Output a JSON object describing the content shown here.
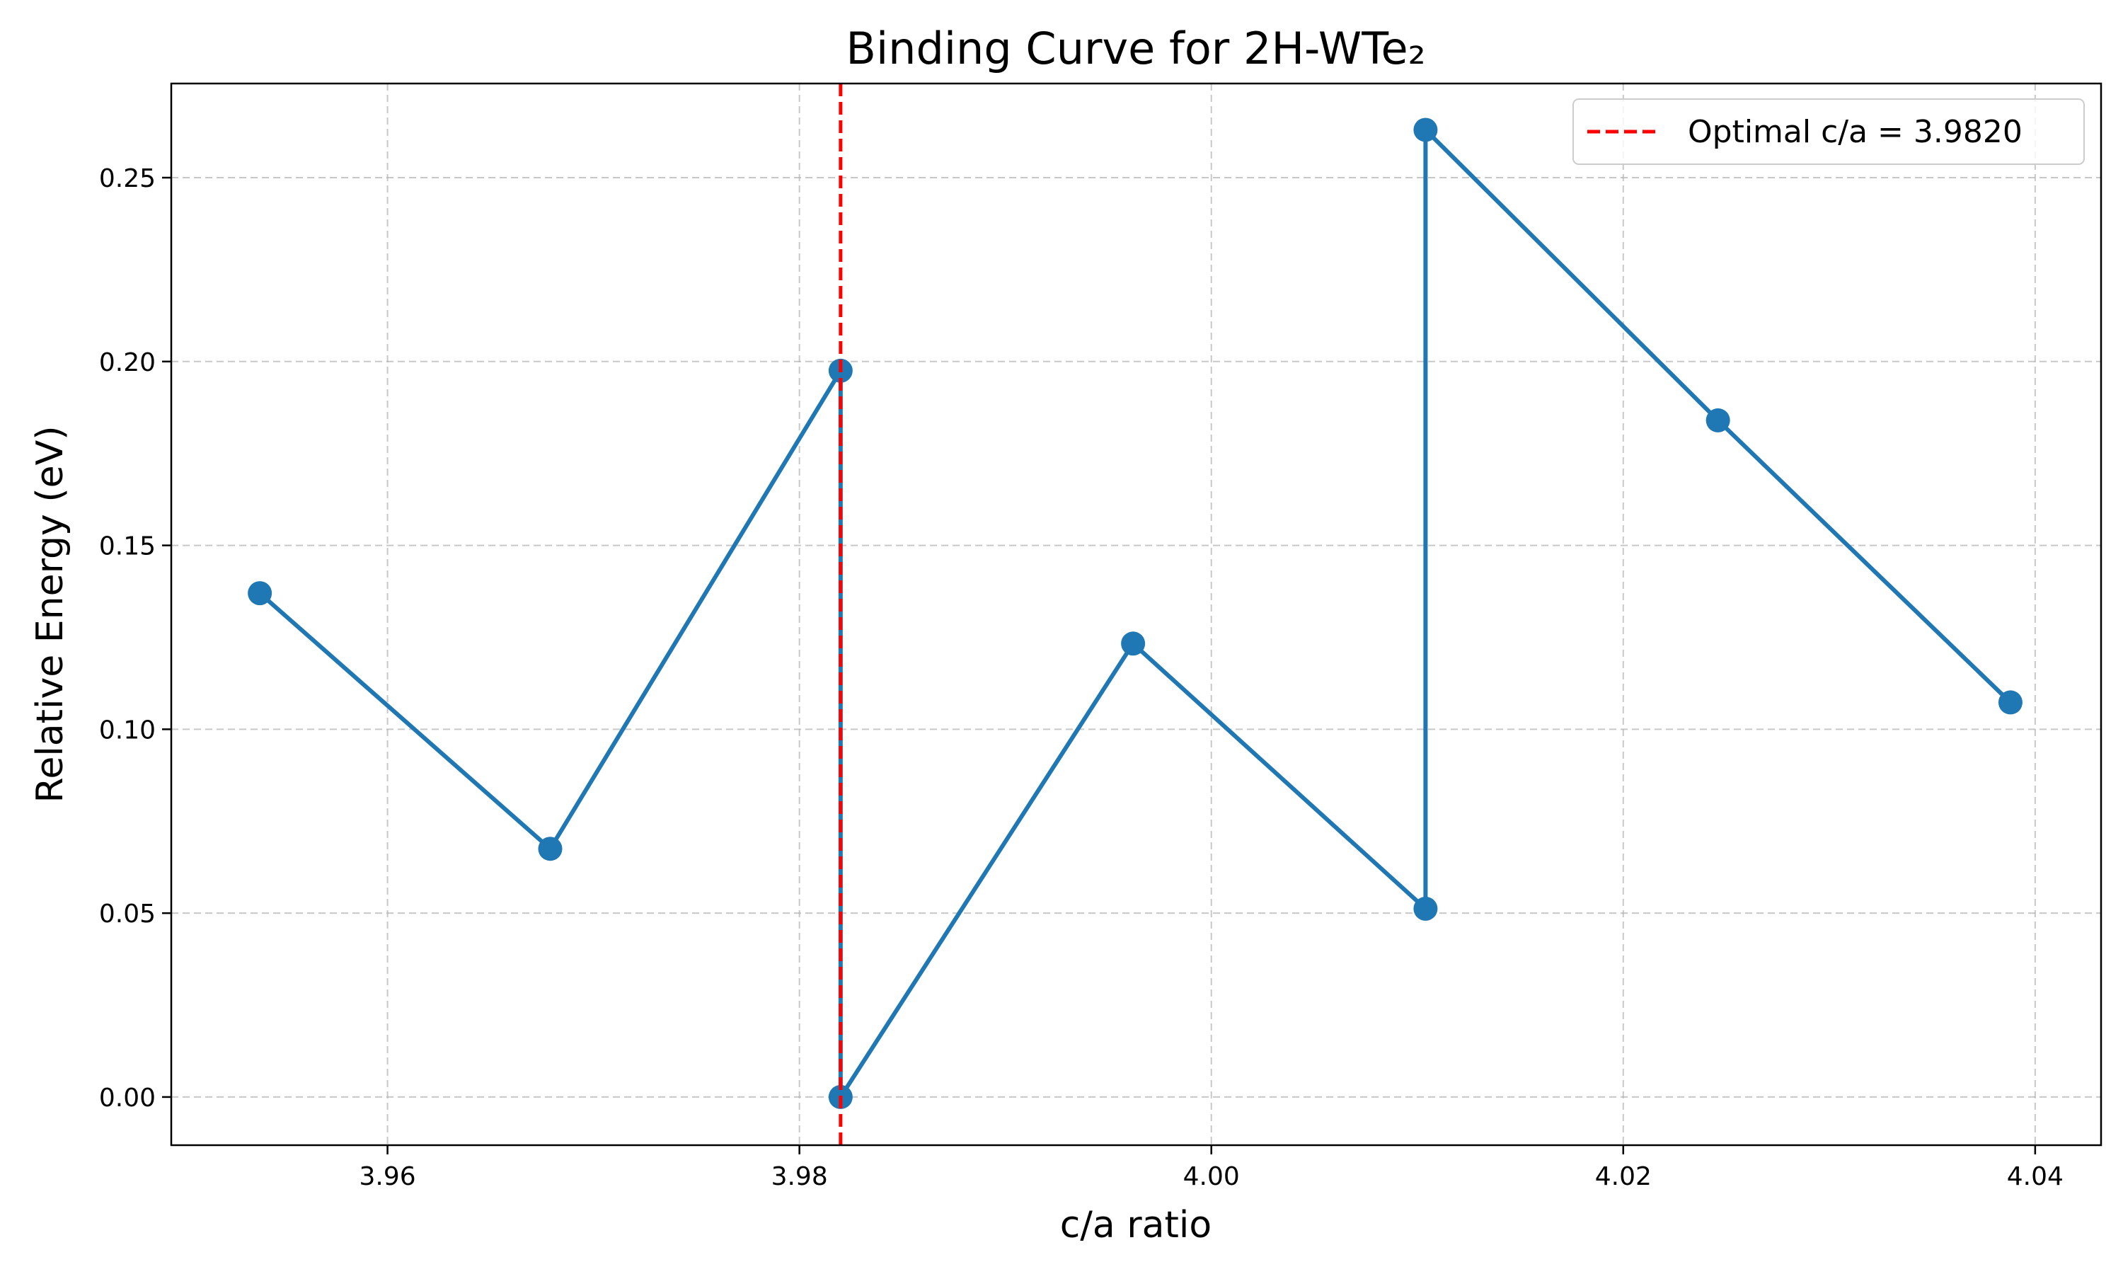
{
  "chart_data": {
    "type": "line",
    "title": "Binding Curve for 2H-WTe₂",
    "xlabel": "c/a ratio",
    "ylabel": "Relative Energy (eV)",
    "xlim": [
      3.9495,
      4.0432
    ],
    "ylim": [
      -0.0131,
      0.2756
    ],
    "xticks": [
      3.96,
      3.98,
      4.0,
      4.02,
      4.04
    ],
    "xtick_labels": [
      "3.96",
      "3.98",
      "4.00",
      "4.02",
      "4.04"
    ],
    "yticks": [
      0.0,
      0.05,
      0.1,
      0.15,
      0.2,
      0.25
    ],
    "ytick_labels": [
      "0.00",
      "0.05",
      "0.10",
      "0.15",
      "0.20",
      "0.25"
    ],
    "grid": true,
    "legend_position": "top-right",
    "series": [
      {
        "color": "#1f77b4",
        "marker": "circle",
        "x": [
          3.9538,
          3.9679,
          3.982,
          3.982,
          3.9962,
          4.0104,
          4.0104,
          4.0246,
          4.0388
        ],
        "y": [
          0.137,
          0.0675,
          0.1975,
          0.0,
          0.1233,
          0.0512,
          0.263,
          0.184,
          0.1073
        ]
      }
    ],
    "reference_lines": [
      {
        "orientation": "vertical",
        "x": 3.982,
        "style": "dashed",
        "color": "#ff0000",
        "label": "Optimal c/a = 3.9820"
      }
    ]
  }
}
